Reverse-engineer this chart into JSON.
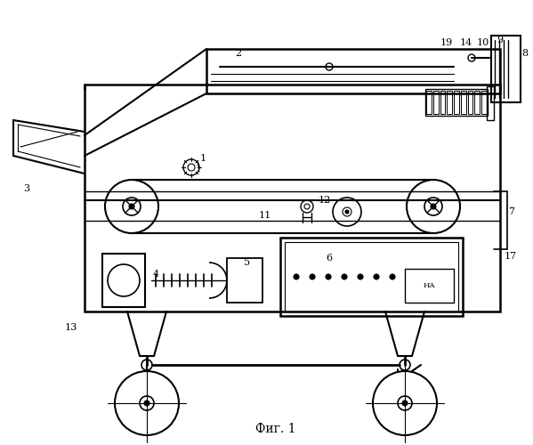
{
  "title": "Фиг. 1",
  "bg_color": "#ffffff",
  "line_color": "#000000",
  "figsize": [
    5.99,
    5.0
  ],
  "dpi": 100
}
